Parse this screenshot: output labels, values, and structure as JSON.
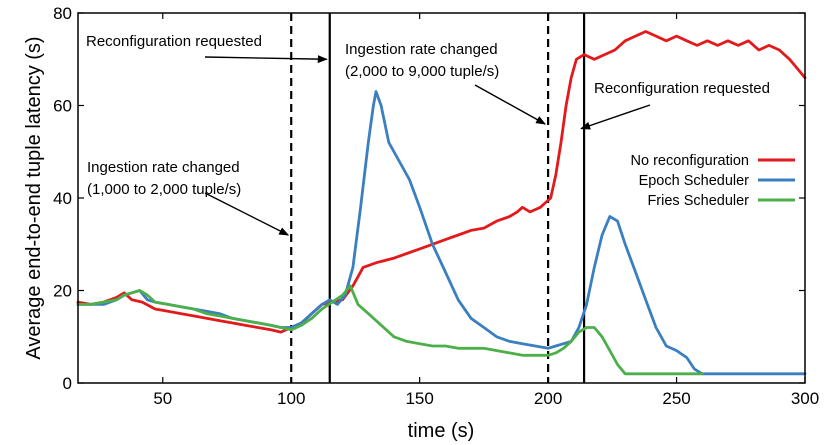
{
  "chart_data": {
    "type": "line",
    "title": "",
    "xlabel": "time (s)",
    "ylabel": "Average end-to-end tuple latency (s)",
    "xlim": [
      17,
      300
    ],
    "ylim": [
      0,
      80
    ],
    "xticks": [
      50,
      100,
      150,
      200,
      250,
      300
    ],
    "yticks": [
      0,
      20,
      40,
      60,
      80
    ],
    "grid": false,
    "legend_position": "right",
    "series": [
      {
        "name": "No reconfiguration",
        "color": "#e31a1c",
        "points": [
          [
            17,
            17.5
          ],
          [
            22,
            17
          ],
          [
            27,
            17.5
          ],
          [
            32,
            18.5
          ],
          [
            35,
            19.5
          ],
          [
            38,
            18
          ],
          [
            42,
            17.5
          ],
          [
            47,
            16
          ],
          [
            52,
            15.5
          ],
          [
            57,
            15
          ],
          [
            62,
            14.5
          ],
          [
            67,
            14
          ],
          [
            72,
            13.5
          ],
          [
            77,
            13
          ],
          [
            82,
            12.5
          ],
          [
            87,
            12
          ],
          [
            92,
            11.5
          ],
          [
            96,
            11
          ],
          [
            100,
            12
          ],
          [
            104,
            13
          ],
          [
            108,
            15
          ],
          [
            112,
            17
          ],
          [
            116,
            17.5
          ],
          [
            120,
            18
          ],
          [
            124,
            21
          ],
          [
            128,
            25
          ],
          [
            133,
            26
          ],
          [
            140,
            27
          ],
          [
            145,
            28
          ],
          [
            150,
            29
          ],
          [
            155,
            30
          ],
          [
            160,
            31
          ],
          [
            165,
            32
          ],
          [
            170,
            33
          ],
          [
            175,
            33.5
          ],
          [
            180,
            35
          ],
          [
            185,
            36
          ],
          [
            188,
            37
          ],
          [
            190,
            38
          ],
          [
            193,
            37
          ],
          [
            197,
            38
          ],
          [
            199,
            39
          ],
          [
            201,
            40
          ],
          [
            203,
            45
          ],
          [
            205,
            52
          ],
          [
            207,
            60
          ],
          [
            209,
            66
          ],
          [
            211,
            70
          ],
          [
            214,
            71
          ],
          [
            218,
            70
          ],
          [
            222,
            71
          ],
          [
            226,
            72
          ],
          [
            230,
            74
          ],
          [
            234,
            75
          ],
          [
            238,
            76
          ],
          [
            242,
            75
          ],
          [
            246,
            74
          ],
          [
            250,
            75
          ],
          [
            254,
            74
          ],
          [
            258,
            73
          ],
          [
            262,
            74
          ],
          [
            266,
            73
          ],
          [
            270,
            74
          ],
          [
            274,
            73
          ],
          [
            278,
            74
          ],
          [
            282,
            72
          ],
          [
            286,
            73
          ],
          [
            290,
            72
          ],
          [
            294,
            70
          ],
          [
            297,
            68
          ],
          [
            300,
            66
          ]
        ]
      },
      {
        "name": "Epoch Scheduler",
        "color": "#3a7fc0",
        "points": [
          [
            17,
            17
          ],
          [
            22,
            17
          ],
          [
            27,
            17
          ],
          [
            32,
            18
          ],
          [
            35,
            19
          ],
          [
            38,
            19.5
          ],
          [
            41,
            20
          ],
          [
            44,
            18
          ],
          [
            47,
            17.5
          ],
          [
            52,
            17
          ],
          [
            57,
            16.5
          ],
          [
            62,
            16
          ],
          [
            67,
            15.5
          ],
          [
            72,
            15
          ],
          [
            77,
            14
          ],
          [
            82,
            13.5
          ],
          [
            87,
            13
          ],
          [
            92,
            12.5
          ],
          [
            96,
            12
          ],
          [
            100,
            12
          ],
          [
            104,
            13
          ],
          [
            108,
            15
          ],
          [
            112,
            17
          ],
          [
            115,
            18
          ],
          [
            118,
            17
          ],
          [
            121,
            19
          ],
          [
            124,
            25
          ],
          [
            127,
            38
          ],
          [
            130,
            52
          ],
          [
            132,
            60
          ],
          [
            133,
            63
          ],
          [
            135,
            60
          ],
          [
            138,
            52
          ],
          [
            142,
            48
          ],
          [
            146,
            44
          ],
          [
            150,
            38
          ],
          [
            155,
            30
          ],
          [
            160,
            24
          ],
          [
            165,
            18
          ],
          [
            170,
            14
          ],
          [
            175,
            12
          ],
          [
            180,
            10
          ],
          [
            185,
            9
          ],
          [
            190,
            8.5
          ],
          [
            195,
            8
          ],
          [
            200,
            7.5
          ],
          [
            203,
            8
          ],
          [
            206,
            8.5
          ],
          [
            209,
            9
          ],
          [
            212,
            12
          ],
          [
            215,
            17
          ],
          [
            218,
            25
          ],
          [
            221,
            32
          ],
          [
            224,
            36
          ],
          [
            227,
            35
          ],
          [
            230,
            30
          ],
          [
            234,
            24
          ],
          [
            238,
            18
          ],
          [
            242,
            12
          ],
          [
            246,
            8
          ],
          [
            250,
            7
          ],
          [
            254,
            5.5
          ],
          [
            257,
            3
          ],
          [
            260,
            2
          ],
          [
            270,
            2
          ],
          [
            280,
            2
          ],
          [
            290,
            2
          ],
          [
            300,
            2
          ]
        ]
      },
      {
        "name": "Fries Scheduler",
        "color": "#4daf4a",
        "points": [
          [
            17,
            17
          ],
          [
            22,
            17
          ],
          [
            27,
            17.5
          ],
          [
            32,
            18
          ],
          [
            35,
            19
          ],
          [
            38,
            19.5
          ],
          [
            41,
            20
          ],
          [
            44,
            19
          ],
          [
            47,
            17.5
          ],
          [
            52,
            17
          ],
          [
            57,
            16.5
          ],
          [
            62,
            16
          ],
          [
            67,
            15
          ],
          [
            72,
            14.5
          ],
          [
            77,
            14
          ],
          [
            82,
            13.5
          ],
          [
            87,
            13
          ],
          [
            92,
            12.5
          ],
          [
            96,
            12
          ],
          [
            100,
            11.5
          ],
          [
            104,
            12.5
          ],
          [
            108,
            14
          ],
          [
            112,
            16
          ],
          [
            116,
            17.5
          ],
          [
            120,
            19
          ],
          [
            123,
            21
          ],
          [
            126,
            17
          ],
          [
            130,
            15
          ],
          [
            135,
            12.5
          ],
          [
            140,
            10
          ],
          [
            145,
            9
          ],
          [
            150,
            8.5
          ],
          [
            155,
            8
          ],
          [
            160,
            8
          ],
          [
            165,
            7.5
          ],
          [
            170,
            7.5
          ],
          [
            175,
            7.5
          ],
          [
            180,
            7
          ],
          [
            185,
            6.5
          ],
          [
            190,
            6
          ],
          [
            195,
            6
          ],
          [
            200,
            6
          ],
          [
            203,
            6.5
          ],
          [
            206,
            7.5
          ],
          [
            209,
            9
          ],
          [
            212,
            11
          ],
          [
            215,
            12
          ],
          [
            218,
            12
          ],
          [
            221,
            10
          ],
          [
            224,
            7
          ],
          [
            227,
            4
          ],
          [
            230,
            2
          ],
          [
            240,
            2
          ],
          [
            250,
            2
          ],
          [
            260,
            2
          ]
        ]
      }
    ],
    "reference_lines": [
      {
        "x": 100,
        "style": "dashed"
      },
      {
        "x": 115,
        "style": "solid"
      },
      {
        "x": 200,
        "style": "dashed"
      },
      {
        "x": 214,
        "style": "solid"
      }
    ],
    "annotations": [
      {
        "lines": [
          "Reconfiguration requested"
        ],
        "target": [
          115,
          70
        ]
      },
      {
        "lines": [
          "Ingestion rate changed",
          "(2,000 to 9,000 tuple/s)"
        ],
        "target": [
          200,
          56
        ]
      },
      {
        "lines": [
          "Reconfiguration requested"
        ],
        "target": [
          214,
          55
        ]
      },
      {
        "lines": [
          "Ingestion rate changed",
          "(1,000 to 2,000 tuple/s)"
        ],
        "target": [
          100,
          32
        ]
      }
    ]
  }
}
